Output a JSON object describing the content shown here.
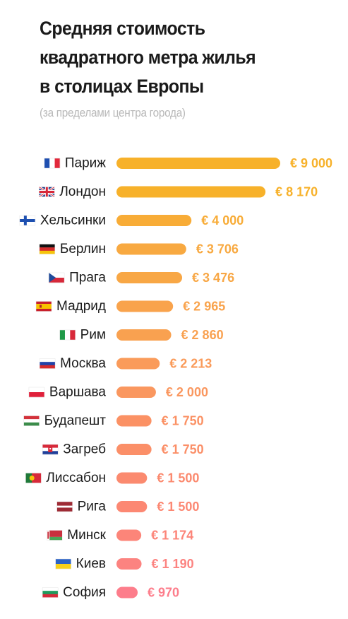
{
  "chart_data": {
    "type": "bar",
    "orientation": "horizontal",
    "title_lines": [
      "Средняя стоимость",
      "квадратного метра жилья",
      "в столицах Европы"
    ],
    "subtitle": "(за пределами центра города)",
    "currency_symbol": "€",
    "categories": [
      "Париж",
      "Лондон",
      "Хельсинки",
      "Берлин",
      "Прага",
      "Мадрид",
      "Рим",
      "Москва",
      "Варшава",
      "Будапешт",
      "Загреб",
      "Лиссабон",
      "Рига",
      "Минск",
      "Киев",
      "София"
    ],
    "values": [
      9000,
      8170,
      4000,
      3706,
      3476,
      2965,
      2860,
      2213,
      2000,
      1750,
      1750,
      1500,
      1500,
      1174,
      1190,
      970
    ],
    "value_labels": [
      "€ 9 000",
      "€ 8 170",
      "€ 4 000",
      "€ 3 706",
      "€ 3 476",
      "€ 2 965",
      "€ 2 860",
      "€ 2 213",
      "€ 2 000",
      "€ 1 750",
      "€ 1 750",
      "€ 1 500",
      "€ 1 500",
      "€ 1 174",
      "€ 1 190",
      "€ 970"
    ],
    "flags": [
      "france-flag",
      "uk-flag",
      "finland-flag",
      "germany-flag",
      "czech-flag",
      "spain-flag",
      "italy-flag",
      "russia-flag",
      "poland-flag",
      "hungary-flag",
      "croatia-flag",
      "portugal-flag",
      "latvia-flag",
      "belarus-flag",
      "ukraine-flag",
      "bulgaria-flag"
    ],
    "colors": [
      "#f7b12a",
      "#f7b12a",
      "#f8ac37",
      "#f8a941",
      "#f8a745",
      "#f9a34c",
      "#f9a150",
      "#fa9b5a",
      "#fa975f",
      "#fb9164",
      "#fb8f68",
      "#fb8a6f",
      "#fc8873",
      "#fc8579",
      "#fc8380",
      "#fd7d8b"
    ],
    "grid": false,
    "legend": "none"
  }
}
